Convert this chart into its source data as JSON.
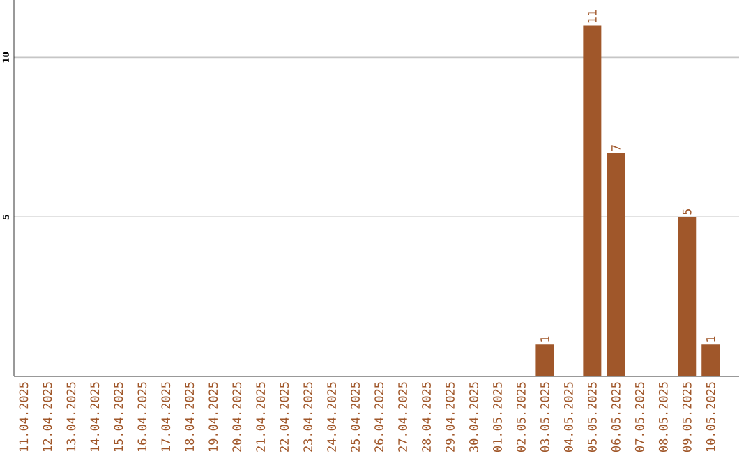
{
  "chart_data": {
    "type": "bar",
    "categories": [
      "11.04.2025",
      "12.04.2025",
      "13.04.2025",
      "14.04.2025",
      "15.04.2025",
      "16.04.2025",
      "17.04.2025",
      "18.04.2025",
      "19.04.2025",
      "20.04.2025",
      "21.04.2025",
      "22.04.2025",
      "23.04.2025",
      "24.04.2025",
      "25.04.2025",
      "26.04.2025",
      "27.04.2025",
      "28.04.2025",
      "29.04.2025",
      "30.04.2025",
      "01.05.2025",
      "02.05.2025",
      "03.05.2025",
      "04.05.2025",
      "05.05.2025",
      "06.05.2025",
      "07.05.2025",
      "08.05.2025",
      "09.05.2025",
      "10.05.2025"
    ],
    "values": [
      0,
      0,
      0,
      0,
      0,
      0,
      0,
      0,
      0,
      0,
      0,
      0,
      0,
      0,
      0,
      0,
      0,
      0,
      0,
      0,
      0,
      0,
      1,
      0,
      11,
      7,
      0,
      0,
      5,
      1
    ],
    "value_labels": [
      null,
      null,
      null,
      null,
      null,
      null,
      null,
      null,
      null,
      null,
      null,
      null,
      null,
      null,
      null,
      null,
      null,
      null,
      null,
      null,
      null,
      null,
      "1",
      null,
      "11",
      "7",
      null,
      null,
      "5",
      "1"
    ],
    "color": "#a0572a",
    "ylim": [
      0,
      11.8
    ],
    "yticks": [
      5,
      10
    ],
    "grid": "y"
  }
}
